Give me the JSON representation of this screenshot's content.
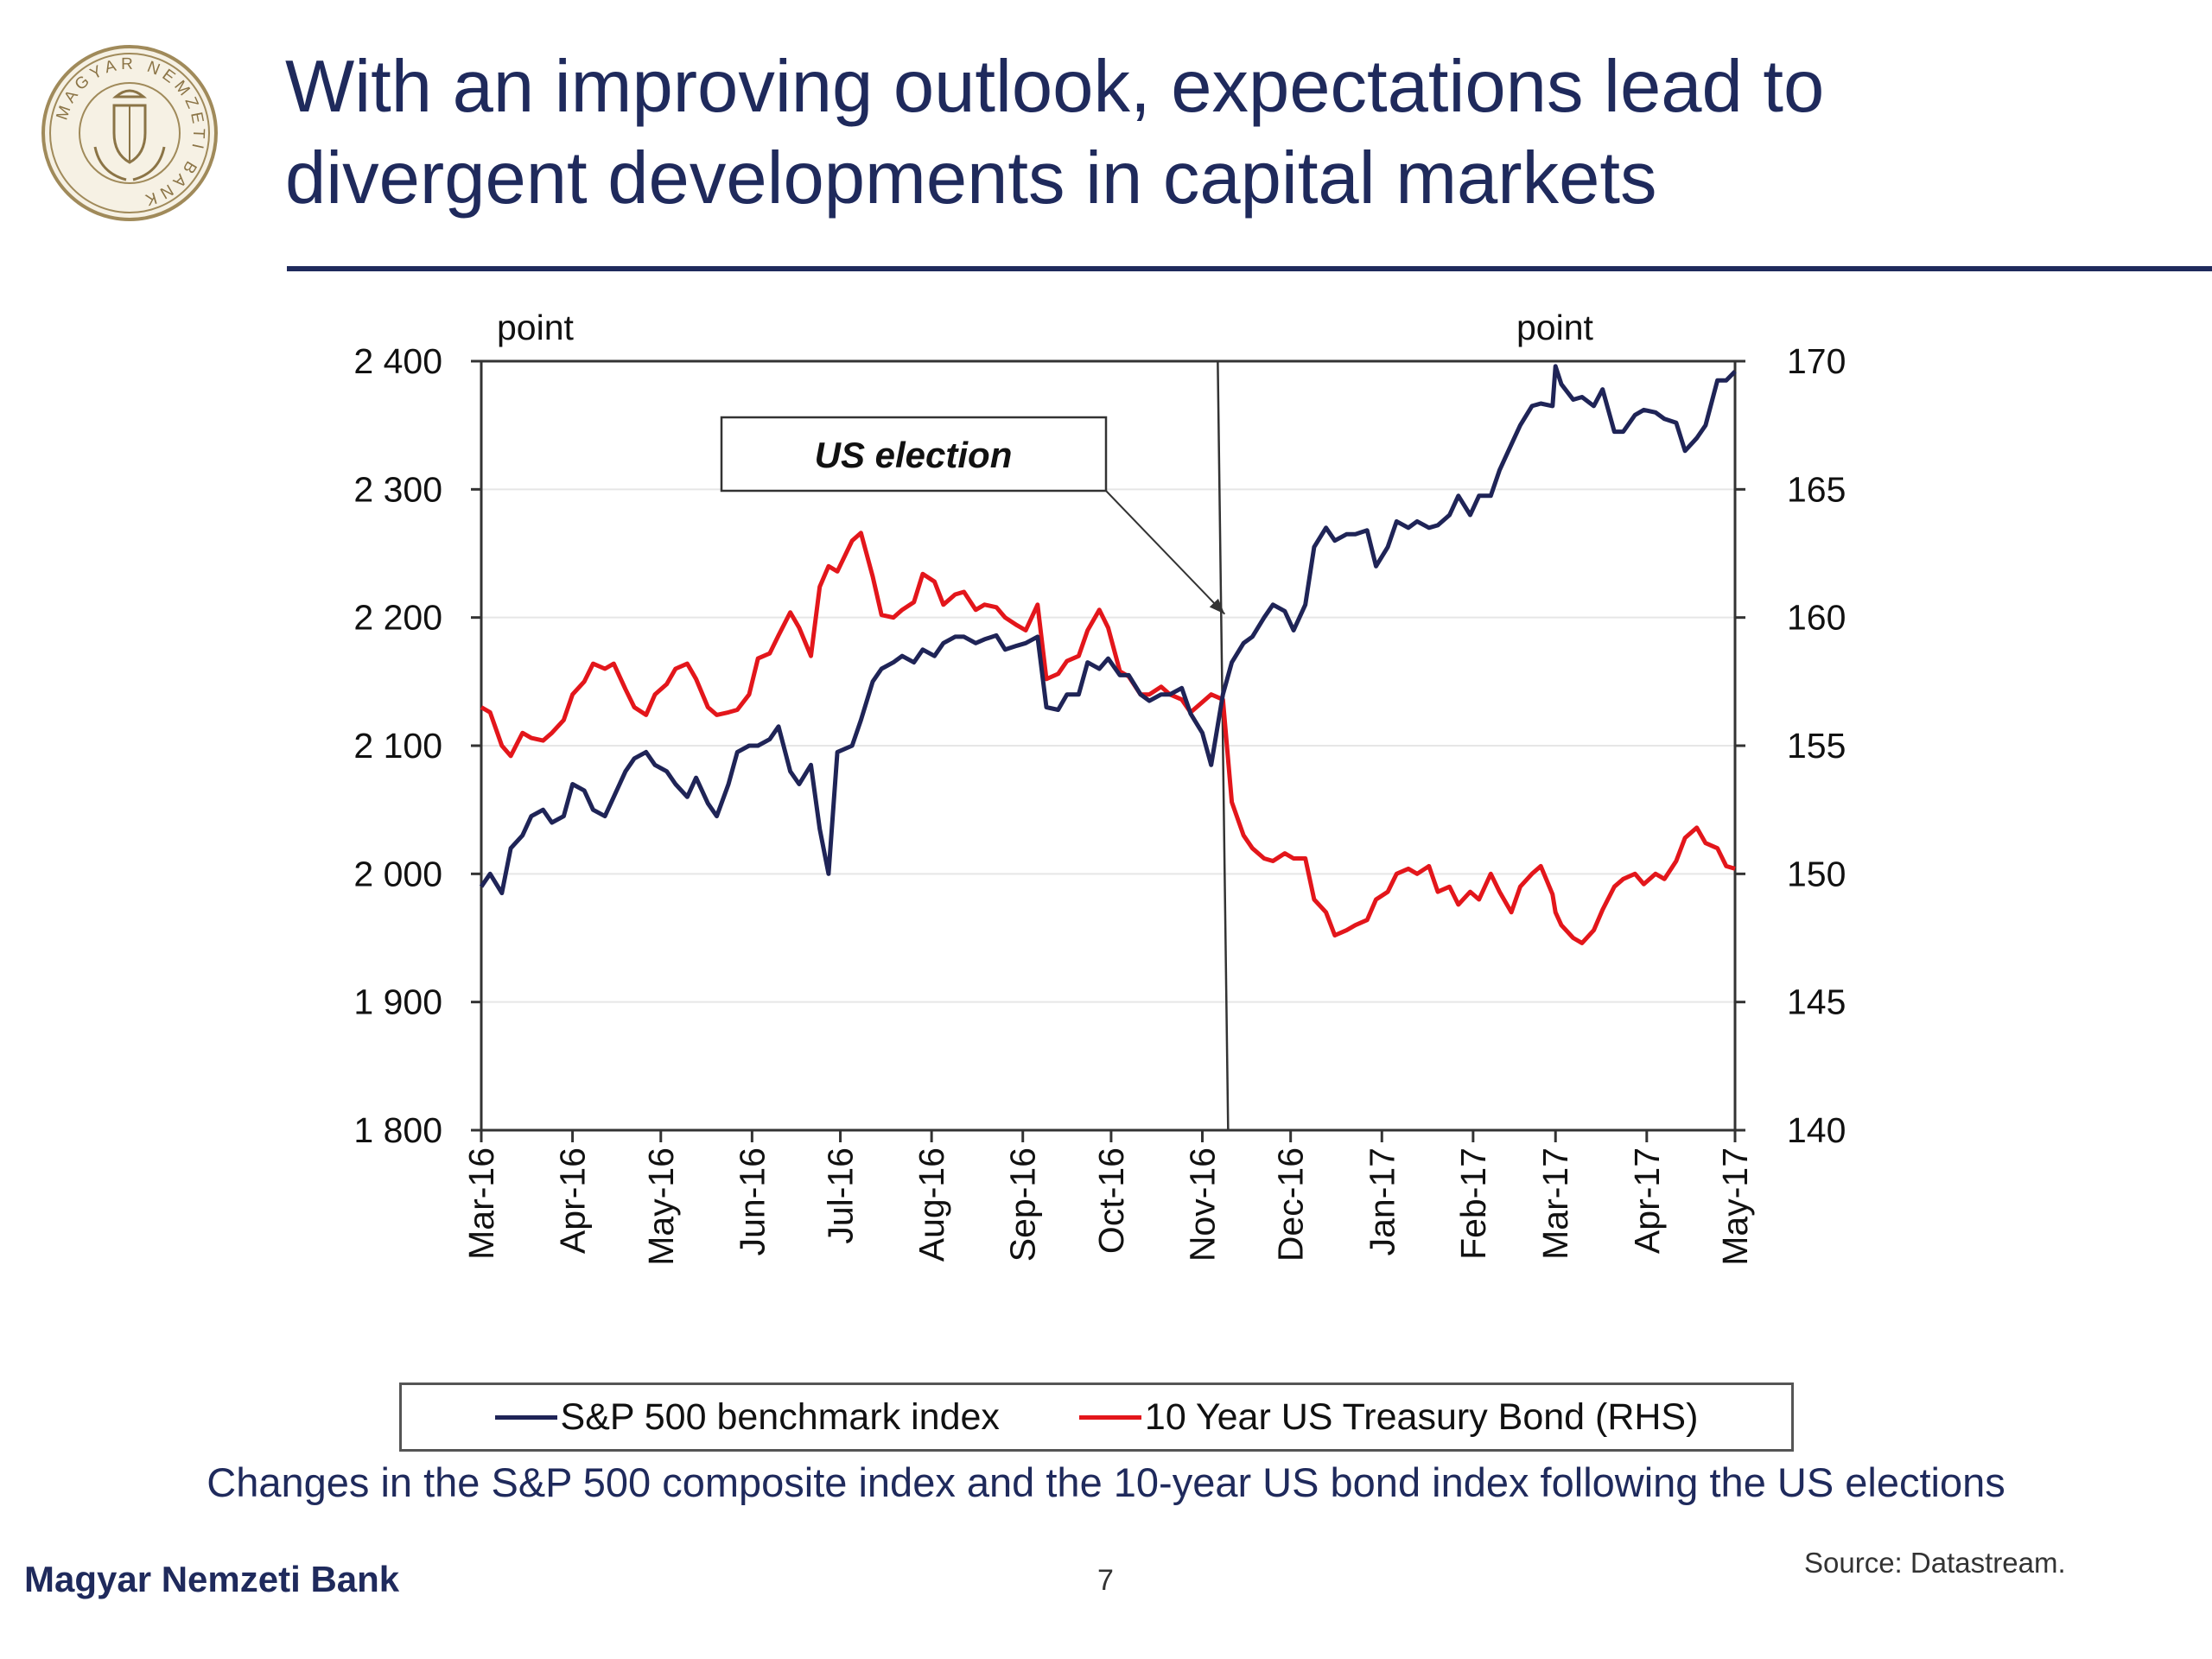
{
  "slide": {
    "title_lines": [
      "With an improving outlook, expectations lead to",
      "divergent developments in capital markets"
    ],
    "caption": "Changes in the S&P 500 composite index and the 10-year US bond index following the US elections",
    "footer_bank": "Magyar Nemzeti Bank",
    "page_number": "7",
    "source": "Source: Datastream.",
    "seal": {
      "ring_text": "MAGYAR NEMZETI BANK",
      "color": "#a08a5a"
    }
  },
  "colors": {
    "navy": "#1f2a5c",
    "sp500": "#1f2457",
    "treasury": "#e3161b"
  },
  "chart_data": {
    "type": "line",
    "left_axis": {
      "unit_label": "point",
      "ticks": [
        "2 400",
        "2 300",
        "2 200",
        "2 100",
        "2 000",
        "1 900",
        "1 800"
      ],
      "ylim": [
        1800,
        2400
      ]
    },
    "right_axis": {
      "unit_label": "point",
      "ticks": [
        "170",
        "165",
        "160",
        "155",
        "150",
        "145",
        "140"
      ],
      "ylim": [
        140,
        170
      ]
    },
    "x_axis": {
      "type": "date",
      "range": [
        "2016-03-01",
        "2017-05-01"
      ],
      "ticks": [
        {
          "date": "2016-03-01",
          "label": "Mar-16"
        },
        {
          "date": "2016-04-01",
          "label": "Apr-16"
        },
        {
          "date": "2016-05-01",
          "label": "May-16"
        },
        {
          "date": "2016-06-01",
          "label": "Jun-16"
        },
        {
          "date": "2016-07-01",
          "label": "Jul-16"
        },
        {
          "date": "2016-08-01",
          "label": "Aug-16"
        },
        {
          "date": "2016-09-01",
          "label": "Sep-16"
        },
        {
          "date": "2016-10-01",
          "label": "Oct-16"
        },
        {
          "date": "2016-11-01",
          "label": "Nov-16"
        },
        {
          "date": "2016-12-01",
          "label": "Dec-16"
        },
        {
          "date": "2017-01-01",
          "label": "Jan-17"
        },
        {
          "date": "2017-02-01",
          "label": "Feb-17"
        },
        {
          "date": "2017-03-01",
          "label": "Mar-17"
        },
        {
          "date": "2017-04-01",
          "label": "Apr-17"
        },
        {
          "date": "2017-05-01",
          "label": "May-17"
        }
      ]
    },
    "annotation": {
      "text": "US election",
      "date": "2016-11-08"
    },
    "grid": true,
    "legend_position": "bottom",
    "series": [
      {
        "name": "S&P 500 benchmark index",
        "axis": "left",
        "points": [
          [
            "2016-03-01",
            1990
          ],
          [
            "2016-03-04",
            2000
          ],
          [
            "2016-03-08",
            1985
          ],
          [
            "2016-03-11",
            2020
          ],
          [
            "2016-03-15",
            2030
          ],
          [
            "2016-03-18",
            2045
          ],
          [
            "2016-03-22",
            2050
          ],
          [
            "2016-03-25",
            2040
          ],
          [
            "2016-03-29",
            2045
          ],
          [
            "2016-04-01",
            2070
          ],
          [
            "2016-04-05",
            2065
          ],
          [
            "2016-04-08",
            2050
          ],
          [
            "2016-04-12",
            2045
          ],
          [
            "2016-04-15",
            2060
          ],
          [
            "2016-04-19",
            2080
          ],
          [
            "2016-04-22",
            2090
          ],
          [
            "2016-04-26",
            2095
          ],
          [
            "2016-04-29",
            2085
          ],
          [
            "2016-05-03",
            2080
          ],
          [
            "2016-05-06",
            2070
          ],
          [
            "2016-05-10",
            2060
          ],
          [
            "2016-05-13",
            2075
          ],
          [
            "2016-05-17",
            2055
          ],
          [
            "2016-05-20",
            2045
          ],
          [
            "2016-05-24",
            2070
          ],
          [
            "2016-05-27",
            2095
          ],
          [
            "2016-05-31",
            2100
          ],
          [
            "2016-06-03",
            2100
          ],
          [
            "2016-06-07",
            2105
          ],
          [
            "2016-06-10",
            2115
          ],
          [
            "2016-06-14",
            2080
          ],
          [
            "2016-06-17",
            2070
          ],
          [
            "2016-06-21",
            2085
          ],
          [
            "2016-06-24",
            2035
          ],
          [
            "2016-06-27",
            2000
          ],
          [
            "2016-06-30",
            2095
          ],
          [
            "2016-07-05",
            2100
          ],
          [
            "2016-07-08",
            2120
          ],
          [
            "2016-07-12",
            2150
          ],
          [
            "2016-07-15",
            2160
          ],
          [
            "2016-07-19",
            2165
          ],
          [
            "2016-07-22",
            2170
          ],
          [
            "2016-07-26",
            2165
          ],
          [
            "2016-07-29",
            2175
          ],
          [
            "2016-08-02",
            2170
          ],
          [
            "2016-08-05",
            2180
          ],
          [
            "2016-08-09",
            2185
          ],
          [
            "2016-08-12",
            2185
          ],
          [
            "2016-08-16",
            2180
          ],
          [
            "2016-08-19",
            2183
          ],
          [
            "2016-08-23",
            2186
          ],
          [
            "2016-08-26",
            2175
          ],
          [
            "2016-08-30",
            2178
          ],
          [
            "2016-09-02",
            2180
          ],
          [
            "2016-09-06",
            2185
          ],
          [
            "2016-09-09",
            2130
          ],
          [
            "2016-09-13",
            2128
          ],
          [
            "2016-09-16",
            2140
          ],
          [
            "2016-09-20",
            2140
          ],
          [
            "2016-09-23",
            2165
          ],
          [
            "2016-09-27",
            2160
          ],
          [
            "2016-09-30",
            2168
          ],
          [
            "2016-10-04",
            2155
          ],
          [
            "2016-10-07",
            2155
          ],
          [
            "2016-10-11",
            2140
          ],
          [
            "2016-10-14",
            2135
          ],
          [
            "2016-10-18",
            2140
          ],
          [
            "2016-10-21",
            2140
          ],
          [
            "2016-10-25",
            2145
          ],
          [
            "2016-10-28",
            2125
          ],
          [
            "2016-11-01",
            2110
          ],
          [
            "2016-11-04",
            2085
          ],
          [
            "2016-11-08",
            2140
          ],
          [
            "2016-11-11",
            2165
          ],
          [
            "2016-11-15",
            2180
          ],
          [
            "2016-11-18",
            2185
          ],
          [
            "2016-11-22",
            2200
          ],
          [
            "2016-11-25",
            2210
          ],
          [
            "2016-11-29",
            2205
          ],
          [
            "2016-12-02",
            2190
          ],
          [
            "2016-12-06",
            2210
          ],
          [
            "2016-12-09",
            2255
          ],
          [
            "2016-12-13",
            2270
          ],
          [
            "2016-12-16",
            2260
          ],
          [
            "2016-12-20",
            2265
          ],
          [
            "2016-12-23",
            2265
          ],
          [
            "2016-12-27",
            2268
          ],
          [
            "2016-12-30",
            2240
          ],
          [
            "2017-01-03",
            2255
          ],
          [
            "2017-01-06",
            2275
          ],
          [
            "2017-01-10",
            2270
          ],
          [
            "2017-01-13",
            2275
          ],
          [
            "2017-01-17",
            2270
          ],
          [
            "2017-01-20",
            2272
          ],
          [
            "2017-01-24",
            2280
          ],
          [
            "2017-01-27",
            2295
          ],
          [
            "2017-01-31",
            2280
          ],
          [
            "2017-02-03",
            2295
          ],
          [
            "2017-02-07",
            2295
          ],
          [
            "2017-02-10",
            2315
          ],
          [
            "2017-02-14",
            2335
          ],
          [
            "2017-02-17",
            2350
          ],
          [
            "2017-02-21",
            2365
          ],
          [
            "2017-02-24",
            2367
          ],
          [
            "2017-02-28",
            2365
          ],
          [
            "2017-03-01",
            2396
          ],
          [
            "2017-03-03",
            2382
          ],
          [
            "2017-03-07",
            2370
          ],
          [
            "2017-03-10",
            2372
          ],
          [
            "2017-03-14",
            2365
          ],
          [
            "2017-03-17",
            2378
          ],
          [
            "2017-03-21",
            2345
          ],
          [
            "2017-03-24",
            2345
          ],
          [
            "2017-03-28",
            2358
          ],
          [
            "2017-03-31",
            2362
          ],
          [
            "2017-04-04",
            2360
          ],
          [
            "2017-04-07",
            2355
          ],
          [
            "2017-04-11",
            2352
          ],
          [
            "2017-04-14",
            2330
          ],
          [
            "2017-04-18",
            2340
          ],
          [
            "2017-04-21",
            2350
          ],
          [
            "2017-04-25",
            2385
          ],
          [
            "2017-04-28",
            2385
          ],
          [
            "2017-05-01",
            2392
          ]
        ]
      },
      {
        "name": "10 Year US Treasury Bond (RHS)",
        "axis": "right",
        "points": [
          [
            "2016-03-01",
            156.5
          ],
          [
            "2016-03-04",
            156.3
          ],
          [
            "2016-03-08",
            155.0
          ],
          [
            "2016-03-11",
            154.6
          ],
          [
            "2016-03-15",
            155.5
          ],
          [
            "2016-03-18",
            155.3
          ],
          [
            "2016-03-22",
            155.2
          ],
          [
            "2016-03-25",
            155.5
          ],
          [
            "2016-03-29",
            156.0
          ],
          [
            "2016-04-01",
            157.0
          ],
          [
            "2016-04-05",
            157.5
          ],
          [
            "2016-04-08",
            158.2
          ],
          [
            "2016-04-12",
            158.0
          ],
          [
            "2016-04-15",
            158.2
          ],
          [
            "2016-04-19",
            157.2
          ],
          [
            "2016-04-22",
            156.5
          ],
          [
            "2016-04-26",
            156.2
          ],
          [
            "2016-04-29",
            157.0
          ],
          [
            "2016-05-03",
            157.4
          ],
          [
            "2016-05-06",
            158.0
          ],
          [
            "2016-05-10",
            158.2
          ],
          [
            "2016-05-13",
            157.6
          ],
          [
            "2016-05-17",
            156.5
          ],
          [
            "2016-05-20",
            156.2
          ],
          [
            "2016-05-24",
            156.3
          ],
          [
            "2016-05-27",
            156.4
          ],
          [
            "2016-05-31",
            157.0
          ],
          [
            "2016-06-03",
            158.4
          ],
          [
            "2016-06-07",
            158.6
          ],
          [
            "2016-06-10",
            159.3
          ],
          [
            "2016-06-14",
            160.2
          ],
          [
            "2016-06-17",
            159.6
          ],
          [
            "2016-06-21",
            158.5
          ],
          [
            "2016-06-24",
            161.2
          ],
          [
            "2016-06-27",
            162.0
          ],
          [
            "2016-06-30",
            161.8
          ],
          [
            "2016-07-05",
            163.0
          ],
          [
            "2016-07-08",
            163.3
          ],
          [
            "2016-07-12",
            161.6
          ],
          [
            "2016-07-15",
            160.1
          ],
          [
            "2016-07-19",
            160.0
          ],
          [
            "2016-07-22",
            160.3
          ],
          [
            "2016-07-26",
            160.6
          ],
          [
            "2016-07-29",
            161.7
          ],
          [
            "2016-08-02",
            161.4
          ],
          [
            "2016-08-05",
            160.5
          ],
          [
            "2016-08-09",
            160.9
          ],
          [
            "2016-08-12",
            161.0
          ],
          [
            "2016-08-16",
            160.3
          ],
          [
            "2016-08-19",
            160.5
          ],
          [
            "2016-08-23",
            160.4
          ],
          [
            "2016-08-26",
            160.0
          ],
          [
            "2016-08-30",
            159.7
          ],
          [
            "2016-09-02",
            159.5
          ],
          [
            "2016-09-06",
            160.5
          ],
          [
            "2016-09-09",
            157.6
          ],
          [
            "2016-09-13",
            157.8
          ],
          [
            "2016-09-16",
            158.3
          ],
          [
            "2016-09-20",
            158.5
          ],
          [
            "2016-09-23",
            159.5
          ],
          [
            "2016-09-27",
            160.3
          ],
          [
            "2016-09-30",
            159.6
          ],
          [
            "2016-10-04",
            157.9
          ],
          [
            "2016-10-07",
            157.7
          ],
          [
            "2016-10-11",
            157.0
          ],
          [
            "2016-10-14",
            157.0
          ],
          [
            "2016-10-18",
            157.3
          ],
          [
            "2016-10-21",
            157.0
          ],
          [
            "2016-10-25",
            156.8
          ],
          [
            "2016-10-28",
            156.3
          ],
          [
            "2016-11-01",
            156.7
          ],
          [
            "2016-11-04",
            157.0
          ],
          [
            "2016-11-08",
            156.8
          ],
          [
            "2016-11-11",
            152.8
          ],
          [
            "2016-11-15",
            151.5
          ],
          [
            "2016-11-18",
            151.0
          ],
          [
            "2016-11-22",
            150.6
          ],
          [
            "2016-11-25",
            150.5
          ],
          [
            "2016-11-29",
            150.8
          ],
          [
            "2016-12-02",
            150.6
          ],
          [
            "2016-12-06",
            150.6
          ],
          [
            "2016-12-09",
            149.0
          ],
          [
            "2016-12-13",
            148.5
          ],
          [
            "2016-12-16",
            147.6
          ],
          [
            "2016-12-20",
            147.8
          ],
          [
            "2016-12-23",
            148.0
          ],
          [
            "2016-12-27",
            148.2
          ],
          [
            "2016-12-30",
            149.0
          ],
          [
            "2017-01-03",
            149.3
          ],
          [
            "2017-01-06",
            150.0
          ],
          [
            "2017-01-10",
            150.2
          ],
          [
            "2017-01-13",
            150.0
          ],
          [
            "2017-01-17",
            150.3
          ],
          [
            "2017-01-20",
            149.3
          ],
          [
            "2017-01-24",
            149.5
          ],
          [
            "2017-01-27",
            148.8
          ],
          [
            "2017-01-31",
            149.3
          ],
          [
            "2017-02-03",
            149.0
          ],
          [
            "2017-02-07",
            150.0
          ],
          [
            "2017-02-10",
            149.3
          ],
          [
            "2017-02-14",
            148.5
          ],
          [
            "2017-02-17",
            149.5
          ],
          [
            "2017-02-21",
            150.0
          ],
          [
            "2017-02-24",
            150.3
          ],
          [
            "2017-02-28",
            149.2
          ],
          [
            "2017-03-01",
            148.5
          ],
          [
            "2017-03-03",
            148.0
          ],
          [
            "2017-03-07",
            147.5
          ],
          [
            "2017-03-10",
            147.3
          ],
          [
            "2017-03-14",
            147.8
          ],
          [
            "2017-03-17",
            148.6
          ],
          [
            "2017-03-21",
            149.5
          ],
          [
            "2017-03-24",
            149.8
          ],
          [
            "2017-03-28",
            150.0
          ],
          [
            "2017-03-31",
            149.6
          ],
          [
            "2017-04-04",
            150.0
          ],
          [
            "2017-04-07",
            149.8
          ],
          [
            "2017-04-11",
            150.5
          ],
          [
            "2017-04-14",
            151.4
          ],
          [
            "2017-04-18",
            151.8
          ],
          [
            "2017-04-21",
            151.2
          ],
          [
            "2017-04-25",
            151.0
          ],
          [
            "2017-04-28",
            150.3
          ],
          [
            "2017-05-01",
            150.2
          ]
        ]
      }
    ]
  }
}
